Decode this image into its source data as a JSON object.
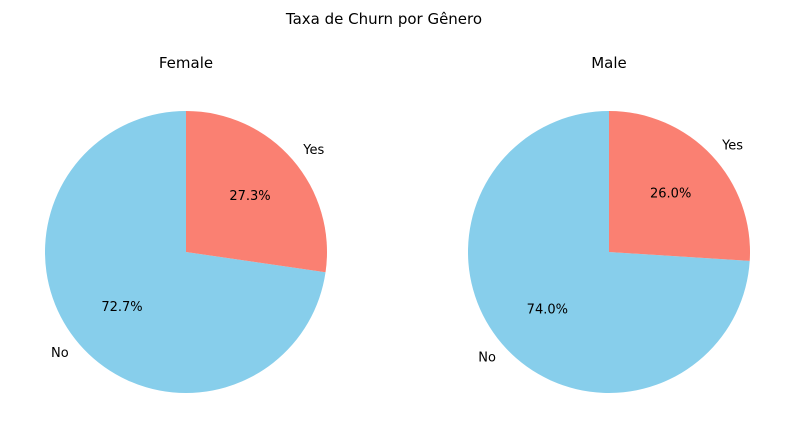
{
  "chart_data": {
    "title": "Taxa de Churn por Gênero",
    "charts": [
      {
        "type": "pie",
        "title": "Female",
        "slices": [
          {
            "label": "No",
            "value": 72.7,
            "pct_label": "72.7%",
            "color": "#87CEEB"
          },
          {
            "label": "Yes",
            "value": 27.3,
            "pct_label": "27.3%",
            "color": "#FA8072"
          }
        ]
      },
      {
        "type": "pie",
        "title": "Male",
        "slices": [
          {
            "label": "No",
            "value": 74.0,
            "pct_label": "74.0%",
            "color": "#87CEEB"
          },
          {
            "label": "Yes",
            "value": 26.0,
            "pct_label": "26.0%",
            "color": "#FA8072"
          }
        ]
      }
    ]
  }
}
